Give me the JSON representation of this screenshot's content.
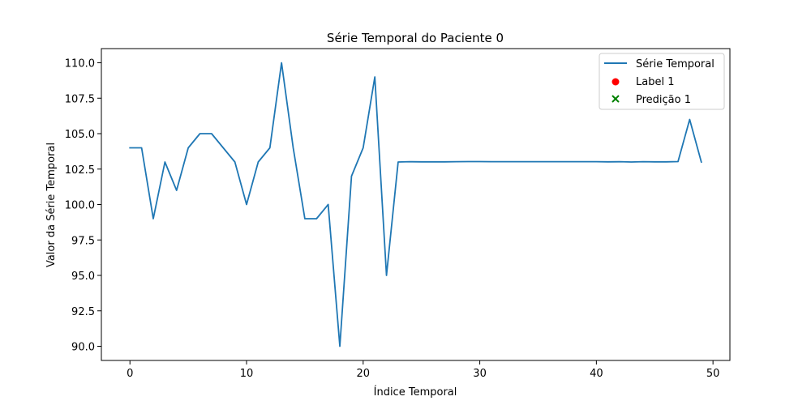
{
  "chart_data": {
    "type": "line",
    "title": "Série Temporal do Paciente 0",
    "xlabel": "Índice Temporal",
    "ylabel": "Valor da Série Temporal",
    "xlim": [
      -2.45,
      51.45
    ],
    "ylim": [
      89.0,
      111.0
    ],
    "x_ticks": [
      0,
      10,
      20,
      30,
      40,
      50
    ],
    "y_ticks": [
      90.0,
      92.5,
      95.0,
      97.5,
      100.0,
      102.5,
      105.0,
      107.5,
      110.0
    ],
    "y_tick_labels": [
      "90.0",
      "92.5",
      "95.0",
      "97.5",
      "100.0",
      "102.5",
      "105.0",
      "107.5",
      "110.0"
    ],
    "grid": false,
    "legend_position": "top-right",
    "series": [
      {
        "name": "Série Temporal",
        "kind": "line",
        "color": "#1f77b4",
        "x": [
          0,
          1,
          2,
          3,
          4,
          5,
          6,
          7,
          8,
          9,
          10,
          11,
          12,
          13,
          14,
          15,
          16,
          17,
          18,
          19,
          20,
          21,
          22,
          23,
          24,
          25,
          26,
          27,
          28,
          29,
          30,
          31,
          32,
          33,
          34,
          35,
          36,
          37,
          38,
          39,
          40,
          41,
          42,
          43,
          44,
          45,
          46,
          47,
          48,
          49
        ],
        "values": [
          104,
          104,
          99,
          103,
          101,
          104,
          105,
          105,
          104,
          103,
          100,
          103,
          104,
          110,
          104,
          99,
          99,
          100,
          90,
          102,
          104,
          109,
          95,
          103,
          103.02,
          103.01,
          103.01,
          103.01,
          103.02,
          103.03,
          103.03,
          103.02,
          103.02,
          103.02,
          103.02,
          103.02,
          103.02,
          103.02,
          103.02,
          103.02,
          103.02,
          103.01,
          103.02,
          103.0,
          103.02,
          103.01,
          103.01,
          103.03,
          106,
          103
        ]
      },
      {
        "name": "Label 1",
        "kind": "scatter-marker",
        "marker": "circle",
        "color": "#ff0000",
        "x": [],
        "values": []
      },
      {
        "name": "Predição 1",
        "kind": "scatter-marker",
        "marker": "x",
        "color": "#008000",
        "x": [],
        "values": []
      }
    ]
  }
}
